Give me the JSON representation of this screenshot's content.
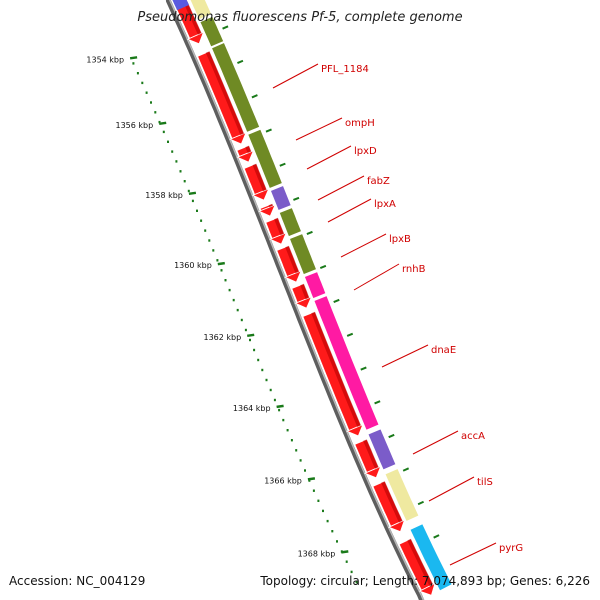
{
  "header": {
    "title": "Pseudomonas fluorescens Pf-5, complete genome"
  },
  "footer": {
    "accession": "Accession: NC_004129",
    "summary": "Topology: circular; Length: 7,074,893 bp; Genes: 6,226"
  },
  "colors": {
    "cds": "#ff1a1a",
    "cds_shade": "#b30000",
    "olive": "#6f8a24",
    "magenta": "#ff1aa3",
    "purple": "#7b5cc9",
    "pale_yellow": "#efe9a0",
    "cyan": "#1ab8f0",
    "label": "#d00000",
    "tick": "#1a7a1a",
    "backbone": "#777777"
  },
  "scale": {
    "ticks": [
      {
        "label": "1354 kbp"
      },
      {
        "label": "1356 kbp"
      },
      {
        "label": "1358 kbp"
      },
      {
        "label": "1360 kbp"
      },
      {
        "label": "1362 kbp"
      },
      {
        "label": "1364 kbp"
      },
      {
        "label": "1366 kbp"
      },
      {
        "label": "1368 kbp"
      }
    ]
  },
  "genes": [
    {
      "name": "PFL_1184"
    },
    {
      "name": "ompH"
    },
    {
      "name": "lpxD"
    },
    {
      "name": "fabZ"
    },
    {
      "name": "lpxA"
    },
    {
      "name": "lpxB"
    },
    {
      "name": "rnhB"
    },
    {
      "name": "dnaE"
    },
    {
      "name": "accA"
    },
    {
      "name": "tilS"
    },
    {
      "name": "pyrG"
    }
  ]
}
